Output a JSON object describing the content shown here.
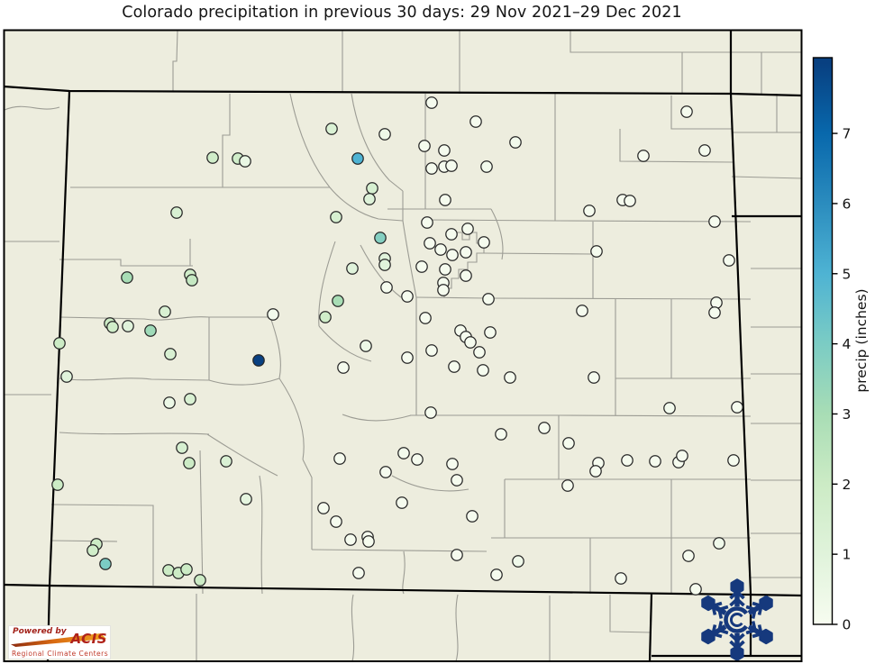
{
  "title": "Colorado precipitation in previous 30 days: 29 Nov 2021–29 Dec 2021",
  "colorbar": {
    "label": "precip (inches)",
    "ticks": [
      0,
      1,
      2,
      3,
      4,
      5,
      6,
      7
    ],
    "vmin": 0,
    "vmax": 8.08
  },
  "map": {
    "region": "Colorado",
    "background_color": "#EDEDDE",
    "county_line_color": "#9c9c94",
    "state_border_color": "#000000",
    "marker_outline_color": "#262626"
  },
  "logos": {
    "acis": {
      "powered_by": "Powered by",
      "name": "ACIS",
      "tagline": "Regional Climate Centers"
    },
    "snowflake": {
      "description": "snowflake logo with letter C at center",
      "color": "#16397D"
    }
  },
  "chart_data": {
    "type": "scatter",
    "title": "Colorado precipitation in previous 30 days: 29 Nov 2021–29 Dec 2021",
    "colorbar_label": "precip (inches)",
    "color_scale": {
      "colormap": "GnBu",
      "vmin": 0,
      "vmax": 8,
      "ticks": [
        0,
        1,
        2,
        3,
        4,
        5,
        6,
        7
      ],
      "stops": [
        [
          0.0,
          "#f7fcf0"
        ],
        [
          0.125,
          "#e0f3db"
        ],
        [
          0.25,
          "#ccebc5"
        ],
        [
          0.375,
          "#a8ddb5"
        ],
        [
          0.5,
          "#7bccc4"
        ],
        [
          0.625,
          "#4eb3d3"
        ],
        [
          0.75,
          "#2b8cbe"
        ],
        [
          0.875,
          "#0868ac"
        ],
        [
          1.0,
          "#084081"
        ]
      ]
    },
    "point_format": [
      "x_px",
      "y_px",
      "precip_in"
    ],
    "coordinate_note": "x,y are pixel positions of station markers on the 971x737 map image",
    "points": [
      [
        236,
        175,
        1.8
      ],
      [
        264,
        176,
        1.8
      ],
      [
        272,
        179,
        0.6
      ],
      [
        196,
        236,
        1.4
      ],
      [
        479,
        114,
        0.1
      ],
      [
        368,
        143,
        1.3
      ],
      [
        427,
        149,
        0.4
      ],
      [
        397,
        176,
        5
      ],
      [
        471,
        162,
        0.1
      ],
      [
        493,
        167,
        0.1
      ],
      [
        528,
        135,
        0.1
      ],
      [
        572,
        158,
        0.2
      ],
      [
        479,
        187,
        0.1
      ],
      [
        493,
        185,
        0.1
      ],
      [
        501,
        184,
        0.1
      ],
      [
        540,
        185,
        0.2
      ],
      [
        413,
        209,
        1.5
      ],
      [
        410,
        221,
        1.1
      ],
      [
        373,
        241,
        1.5
      ],
      [
        494,
        222,
        0.1
      ],
      [
        762,
        124,
        0.1
      ],
      [
        782,
        167,
        0.1
      ],
      [
        714,
        173,
        0.1
      ],
      [
        691,
        222,
        0.1
      ],
      [
        699,
        223,
        0.1
      ],
      [
        654,
        234,
        0.1
      ],
      [
        793,
        246,
        0.1
      ],
      [
        141,
        308,
        3
      ],
      [
        211,
        305,
        1.8
      ],
      [
        213,
        311,
        2.2
      ],
      [
        183,
        346,
        1.4
      ],
      [
        122,
        359,
        2
      ],
      [
        125,
        363,
        1.8
      ],
      [
        142,
        362,
        1
      ],
      [
        167,
        367,
        3.2
      ],
      [
        66,
        381,
        2
      ],
      [
        189,
        393,
        1.4
      ],
      [
        287,
        400,
        8
      ],
      [
        74,
        418,
        1
      ],
      [
        188,
        447,
        0.5
      ],
      [
        211,
        443,
        1.4
      ],
      [
        202,
        497,
        1.5
      ],
      [
        422,
        264,
        3.8
      ],
      [
        474,
        247,
        0.1
      ],
      [
        501,
        260,
        0.1
      ],
      [
        519,
        254,
        0.1
      ],
      [
        477,
        270,
        0.1
      ],
      [
        489,
        277,
        0.1
      ],
      [
        502,
        283,
        0.1
      ],
      [
        517,
        280,
        0.1
      ],
      [
        537,
        269,
        0.1
      ],
      [
        427,
        287,
        1
      ],
      [
        427,
        294,
        1
      ],
      [
        391,
        298,
        1
      ],
      [
        468,
        296,
        0.1
      ],
      [
        494,
        299,
        0.1
      ],
      [
        517,
        306,
        0.1
      ],
      [
        492,
        314,
        0.1
      ],
      [
        492,
        322,
        0.1
      ],
      [
        429,
        319,
        0.1
      ],
      [
        452,
        329,
        0.1
      ],
      [
        542,
        332,
        0.1
      ],
      [
        375,
        334,
        3
      ],
      [
        361,
        352,
        1.8
      ],
      [
        303,
        349,
        0.2
      ],
      [
        472,
        353,
        0.1
      ],
      [
        511,
        367,
        0.1
      ],
      [
        517,
        374,
        0.1
      ],
      [
        522,
        380,
        0.1
      ],
      [
        544,
        369,
        0.1
      ],
      [
        406,
        384,
        0.5
      ],
      [
        479,
        389,
        0.1
      ],
      [
        452,
        397,
        0.1
      ],
      [
        532,
        391,
        0.1
      ],
      [
        504,
        407,
        0.1
      ],
      [
        536,
        411,
        0.1
      ],
      [
        381,
        408,
        0.1
      ],
      [
        566,
        419,
        0.1
      ],
      [
        478,
        458,
        0.1
      ],
      [
        556,
        482,
        0.1
      ],
      [
        604,
        475,
        0.1
      ],
      [
        662,
        279,
        0.1
      ],
      [
        809,
        289,
        0.1
      ],
      [
        646,
        345,
        0.1
      ],
      [
        795,
        336,
        0.1
      ],
      [
        793,
        347,
        0.1
      ],
      [
        659,
        419,
        0.1
      ],
      [
        743,
        453,
        0.2
      ],
      [
        818,
        452,
        0.1
      ],
      [
        631,
        492,
        0.1
      ],
      [
        64,
        538,
        2
      ],
      [
        210,
        514,
        2
      ],
      [
        251,
        512,
        1.3
      ],
      [
        273,
        554,
        0.8
      ],
      [
        107,
        604,
        2
      ],
      [
        103,
        611,
        1.8
      ],
      [
        117,
        626,
        4
      ],
      [
        187,
        633,
        2
      ],
      [
        198,
        636,
        2
      ],
      [
        207,
        632,
        2
      ],
      [
        222,
        644,
        2
      ],
      [
        377,
        509,
        0.1
      ],
      [
        448,
        503,
        0.2
      ],
      [
        463,
        510,
        0.1
      ],
      [
        428,
        524,
        0.1
      ],
      [
        502,
        515,
        0.1
      ],
      [
        507,
        533,
        0.1
      ],
      [
        446,
        558,
        0.1
      ],
      [
        359,
        564,
        0.1
      ],
      [
        373,
        579,
        0.1
      ],
      [
        524,
        573,
        0.1
      ],
      [
        389,
        599,
        0.1
      ],
      [
        408,
        596,
        0.1
      ],
      [
        409,
        601,
        0.1
      ],
      [
        507,
        616,
        0.1
      ],
      [
        575,
        623,
        0.3
      ],
      [
        398,
        636,
        0.1
      ],
      [
        551,
        638,
        0.1
      ],
      [
        664,
        514,
        0.1
      ],
      [
        661,
        523,
        0.1
      ],
      [
        696,
        511,
        0.1
      ],
      [
        727,
        512,
        0.1
      ],
      [
        753,
        513,
        0.1
      ],
      [
        757,
        506,
        0.1
      ],
      [
        814,
        511,
        0.1
      ],
      [
        630,
        539,
        0.1
      ],
      [
        798,
        603,
        0.3
      ],
      [
        764,
        617,
        0.1
      ],
      [
        689,
        642,
        0.1
      ],
      [
        772,
        654,
        0.1
      ]
    ]
  }
}
